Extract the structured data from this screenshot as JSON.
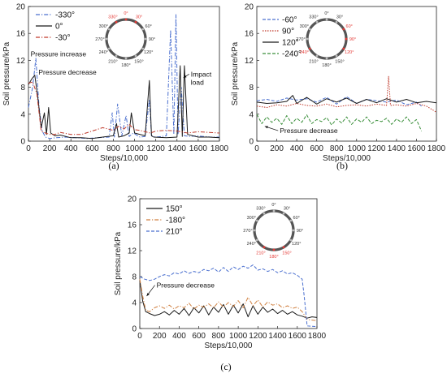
{
  "colors": {
    "blue": "#4a6fcf",
    "black": "#1a1a1a",
    "red": "#c0392b",
    "green": "#3a8f3a",
    "orange": "#d08040",
    "ring_red": "#e53935"
  },
  "ring_angles": [
    "330°",
    "0°",
    "30°",
    "60°",
    "90°",
    "120°",
    "150°",
    "180°",
    "210°",
    "240°",
    "270°",
    "300°"
  ],
  "chart_data": [
    {
      "id": "a",
      "type": "line",
      "caption": "(a)",
      "xlabel": "Steps/10,000",
      "ylabel": "Soil pressure/kPa",
      "xlim": [
        0,
        1800
      ],
      "ylim": [
        0,
        20
      ],
      "xticks": [
        0,
        200,
        400,
        600,
        800,
        1000,
        1200,
        1400,
        1600,
        1800
      ],
      "yticks": [
        0,
        4,
        8,
        12,
        16,
        20
      ],
      "legend_position": "top-left",
      "highlight_angles": [
        "330°",
        "0°",
        "30°"
      ],
      "annotations": [
        {
          "text": "Pressure increase",
          "x": 20,
          "y": 12.6
        },
        {
          "text": "Pressure decrease",
          "x": 95,
          "y": 9.9
        },
        {
          "text": "Impact\nload",
          "x": 1530,
          "y": 9.6,
          "arrow_to": [
            1460,
            9.4
          ]
        }
      ],
      "series": [
        {
          "name": "-330°",
          "style": "dash-dot",
          "color_key": "blue",
          "x": [
            0,
            40,
            70,
            100,
            130,
            160,
            200,
            260,
            350,
            450,
            550,
            650,
            760,
            790,
            810,
            840,
            880,
            920,
            950,
            990,
            1050,
            1100,
            1140,
            1160,
            1200,
            1260,
            1300,
            1340,
            1370,
            1390,
            1410,
            1440,
            1470,
            1520,
            1580,
            1650,
            1720,
            1800
          ],
          "y": [
            5,
            8,
            12.3,
            5,
            1.5,
            0.6,
            0.4,
            0.5,
            0.6,
            0.5,
            0.4,
            0.5,
            0.6,
            4.2,
            0.6,
            5.5,
            0.8,
            3.8,
            0.7,
            1.2,
            0.6,
            0.7,
            6.2,
            0.8,
            0.6,
            0.7,
            0.8,
            16.5,
            1,
            18.8,
            1,
            8,
            0.8,
            0.7,
            0.8,
            0.7,
            0.6,
            0.6
          ]
        },
        {
          "name": "0°",
          "style": "solid",
          "color_key": "black",
          "x": [
            0,
            30,
            60,
            90,
            120,
            150,
            170,
            190,
            210,
            250,
            300,
            400,
            500,
            600,
            700,
            800,
            830,
            850,
            900,
            950,
            970,
            1000,
            1100,
            1140,
            1160,
            1180,
            1300,
            1400,
            1430,
            1450,
            1470,
            1500,
            1600,
            1700,
            1800
          ],
          "y": [
            8.4,
            9.2,
            9.8,
            6.2,
            2,
            4.2,
            1,
            5,
            1.2,
            0.8,
            0.9,
            0.5,
            0.5,
            0.4,
            0.6,
            0.8,
            2.6,
            0.6,
            0.8,
            1.2,
            4.2,
            1.2,
            0.8,
            9,
            0.8,
            0.6,
            0.5,
            0.6,
            11.2,
            0.7,
            11.2,
            1,
            0.6,
            0.6,
            0.5
          ]
        },
        {
          "name": "-30°",
          "style": "dash-dot",
          "color_key": "red",
          "x": [
            0,
            40,
            80,
            120,
            160,
            200,
            250,
            300,
            400,
            500,
            600,
            700,
            800,
            850,
            900,
            950,
            1000,
            1050,
            1100,
            1150,
            1200,
            1300,
            1400,
            1500,
            1600,
            1700,
            1800
          ],
          "y": [
            8.6,
            8.8,
            7,
            1.5,
            1.2,
            1,
            1,
            1.3,
            1,
            1,
            1.5,
            2,
            1.6,
            2.2,
            1.8,
            2.5,
            1.7,
            1.6,
            1.4,
            1.2,
            1.5,
            1.6,
            1.5,
            1.2,
            1.4,
            1.3,
            1.2
          ]
        }
      ]
    },
    {
      "id": "b",
      "type": "line",
      "caption": "(b)",
      "xlabel": "Steps/10,000",
      "ylabel": "Soil pressure/kPa",
      "xlim": [
        0,
        1800
      ],
      "ylim": [
        0,
        20
      ],
      "xticks": [
        0,
        200,
        400,
        600,
        800,
        1000,
        1200,
        1400,
        1600,
        1800
      ],
      "yticks": [
        0,
        4,
        8,
        12,
        16,
        20
      ],
      "legend_position": "top-left",
      "highlight_angles": [
        "60°",
        "90°",
        "120°",
        "240°"
      ],
      "annotations": [
        {
          "text": "Pressure decrease",
          "x": 230,
          "y": 1.2,
          "arrow_to": [
            80,
            2.2
          ]
        }
      ],
      "series": [
        {
          "name": "-60°",
          "style": "dash",
          "color_key": "blue",
          "x": [
            0,
            100,
            200,
            300,
            400,
            500,
            600,
            700,
            800,
            900,
            1000,
            1100,
            1200,
            1300,
            1400,
            1500,
            1600,
            1650
          ],
          "y": [
            6,
            6.2,
            5.9,
            6.4,
            6.1,
            6.3,
            5.8,
            6.5,
            5.5,
            6.6,
            5.6,
            6.2,
            6,
            5.8,
            6.1,
            5.4,
            5.8,
            5.2
          ]
        },
        {
          "name": "90°",
          "style": "dot",
          "color_key": "red",
          "x": [
            0,
            100,
            200,
            300,
            400,
            500,
            600,
            700,
            800,
            900,
            1000,
            1100,
            1200,
            1300,
            1320,
            1340,
            1400,
            1500,
            1600,
            1700,
            1800
          ],
          "y": [
            5.2,
            5,
            5.4,
            5.2,
            5.6,
            5.3,
            5.2,
            5.5,
            5.1,
            5.3,
            5.4,
            5.2,
            5.5,
            5.3,
            9.6,
            5.3,
            5.4,
            5.2,
            5.6,
            5.2,
            4.3
          ]
        },
        {
          "name": "120°",
          "style": "solid",
          "color_key": "black",
          "x": [
            0,
            100,
            200,
            300,
            360,
            400,
            500,
            600,
            700,
            800,
            900,
            1000,
            1100,
            1200,
            1300,
            1400,
            1500,
            1600,
            1700,
            1800
          ],
          "y": [
            5.8,
            5.6,
            5.7,
            5.9,
            6.8,
            5.6,
            6.5,
            5.5,
            6.3,
            5.8,
            6.4,
            5.6,
            6.2,
            5.7,
            6.3,
            5.8,
            6.2,
            5.7,
            5.9,
            5.7
          ]
        },
        {
          "name": "-240°",
          "style": "dash",
          "color_key": "green",
          "x": [
            0,
            50,
            100,
            150,
            200,
            250,
            300,
            350,
            400,
            450,
            500,
            550,
            600,
            650,
            700,
            750,
            800,
            850,
            900,
            950,
            1000,
            1050,
            1100,
            1150,
            1200,
            1250,
            1300,
            1350,
            1400,
            1450,
            1500,
            1550,
            1600,
            1650
          ],
          "y": [
            4,
            2.6,
            3.6,
            2.8,
            3.4,
            2.5,
            3.8,
            2.6,
            3.4,
            2.8,
            3.9,
            2.6,
            3.2,
            2.9,
            3.5,
            2.4,
            3.3,
            2.7,
            3.6,
            2.5,
            3.3,
            2.8,
            3.6,
            2.6,
            3.1,
            2.9,
            3.4,
            2.5,
            3.3,
            2.8,
            3.6,
            2.6,
            3.2,
            1.5
          ]
        }
      ]
    },
    {
      "id": "c",
      "type": "line",
      "caption": "(c)",
      "xlabel": "Steps/10,000",
      "ylabel": "Soil pressure/kPa",
      "xlim": [
        0,
        1800
      ],
      "ylim": [
        0,
        20
      ],
      "xticks": [
        0,
        200,
        400,
        600,
        800,
        1000,
        1200,
        1400,
        1600,
        1800
      ],
      "yticks": [
        0,
        4,
        8,
        12,
        16,
        20
      ],
      "legend_position": "top-left",
      "highlight_angles": [
        "150°",
        "180°",
        "210°"
      ],
      "annotations": [
        {
          "text": "Pressure decrease",
          "x": 170,
          "y": 6.3,
          "arrow_to": [
            70,
            5
          ]
        }
      ],
      "series": [
        {
          "name": "150°",
          "style": "solid",
          "color_key": "black",
          "x": [
            0,
            30,
            60,
            100,
            150,
            200,
            250,
            300,
            350,
            400,
            450,
            500,
            550,
            600,
            650,
            700,
            750,
            800,
            850,
            900,
            950,
            1000,
            1050,
            1100,
            1150,
            1200,
            1250,
            1300,
            1350,
            1400,
            1450,
            1500,
            1550,
            1600,
            1650,
            1700,
            1750,
            1800
          ],
          "y": [
            7.5,
            4.2,
            2.6,
            2.3,
            2,
            2.2,
            2.6,
            2.1,
            2.8,
            2.2,
            3.1,
            2,
            3.2,
            2.4,
            3.5,
            2.1,
            3.3,
            2.5,
            3.7,
            2.2,
            3.6,
            2.4,
            3.8,
            1.8,
            3.5,
            2.2,
            3.3,
            2.5,
            3,
            2.3,
            2.8,
            2.2,
            2.6,
            2.1,
            1.9,
            1.6,
            1.8,
            1.7
          ]
        },
        {
          "name": "-180°",
          "style": "dash-dot",
          "color_key": "orange",
          "x": [
            0,
            30,
            60,
            100,
            150,
            200,
            250,
            300,
            350,
            400,
            450,
            500,
            550,
            600,
            650,
            700,
            750,
            800,
            850,
            900,
            950,
            1000,
            1050,
            1100,
            1150,
            1200,
            1250,
            1300,
            1350,
            1400,
            1450,
            1500,
            1550,
            1600,
            1650,
            1700,
            1750,
            1800
          ],
          "y": [
            7.6,
            5,
            2.8,
            2.6,
            3.2,
            3.5,
            3.1,
            3.6,
            3,
            3.5,
            3.2,
            3.9,
            3,
            3.6,
            3.3,
            3.8,
            3.2,
            4.1,
            3.3,
            4,
            3.4,
            4.3,
            3.2,
            4.8,
            3.5,
            4.4,
            3.3,
            4.1,
            3.6,
            3.8,
            3.2,
            3.5,
            3.1,
            3.3,
            2.6,
            1.4,
            1.3,
            1.2
          ]
        },
        {
          "name": "210°",
          "style": "dash",
          "color_key": "blue",
          "x": [
            0,
            50,
            100,
            150,
            200,
            250,
            300,
            350,
            400,
            450,
            500,
            550,
            600,
            650,
            700,
            750,
            800,
            850,
            900,
            950,
            1000,
            1050,
            1100,
            1150,
            1200,
            1250,
            1300,
            1350,
            1400,
            1450,
            1500,
            1550,
            1600,
            1650,
            1670,
            1700,
            1800
          ],
          "y": [
            8,
            7.6,
            7.4,
            7.6,
            8,
            8.3,
            8.1,
            8.6,
            8.4,
            8.9,
            8.5,
            8.8,
            8.6,
            9.1,
            8.9,
            9.3,
            8.7,
            9.4,
            8.8,
            9.5,
            9.1,
            9.6,
            9.3,
            9.8,
            9,
            9.2,
            8.8,
            9.1,
            8.6,
            8.9,
            8.4,
            8.6,
            8.2,
            7.6,
            5,
            0.4,
            0.3
          ]
        }
      ]
    }
  ]
}
